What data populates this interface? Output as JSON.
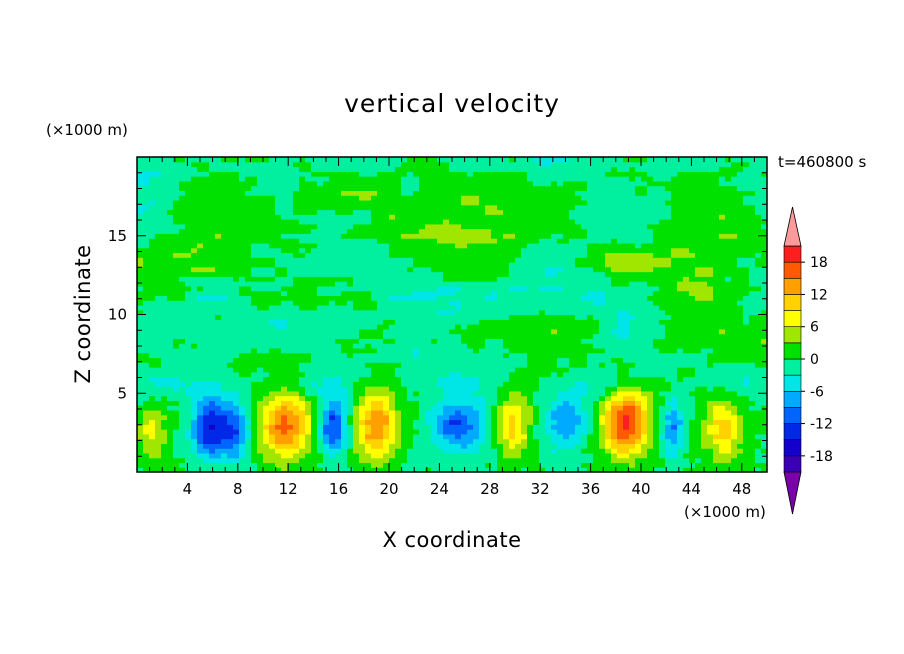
{
  "chart_data": {
    "type": "heatmap",
    "title": "vertical velocity",
    "xlabel": "X coordinate",
    "ylabel": "Z coordinate",
    "x_unit": "(×1000 m)",
    "y_unit": "(×1000 m)",
    "time_label": "t=460800 s",
    "xlim": [
      0,
      50
    ],
    "ylim": [
      0,
      20
    ],
    "x_ticks": [
      "4",
      "8",
      "12",
      "16",
      "20",
      "24",
      "28",
      "32",
      "36",
      "40",
      "44",
      "48"
    ],
    "y_ticks": [
      "5",
      "10",
      "15"
    ],
    "colorbar": {
      "levels": [
        -21,
        -18,
        -15,
        -12,
        -9,
        -6,
        -3,
        0,
        3,
        6,
        9,
        12,
        15,
        18,
        21
      ],
      "tick_labels": [
        "18",
        "12",
        "6",
        "0",
        "-6",
        "-12",
        "-18"
      ],
      "colors": [
        "#7a00a8",
        "#3c00b4",
        "#1400cc",
        "#0028e6",
        "#0064ff",
        "#00aaff",
        "#00e6e6",
        "#00f0a0",
        "#00e100",
        "#a0e600",
        "#ffff00",
        "#ffd200",
        "#ffa000",
        "#ff5a00",
        "#ff1e1e",
        "#ff9a9a"
      ],
      "extend": "both"
    },
    "cells": [
      {
        "x": 6,
        "z": 2.8,
        "w": -16,
        "sx": 1.6,
        "sz": 1.9
      },
      {
        "x": 8,
        "z": 2.6,
        "w": -8,
        "sx": 1.0,
        "sz": 1.8
      },
      {
        "x": 11.8,
        "z": 3.0,
        "w": 16,
        "sx": 2.0,
        "sz": 2.1
      },
      {
        "x": 15.5,
        "z": 3.0,
        "w": -13,
        "sx": 1.1,
        "sz": 1.8
      },
      {
        "x": 19.0,
        "z": 3.0,
        "w": 15,
        "sx": 1.6,
        "sz": 2.1
      },
      {
        "x": 25.5,
        "z": 3.0,
        "w": -12,
        "sx": 2.0,
        "sz": 1.7
      },
      {
        "x": 29.8,
        "z": 3.0,
        "w": 10,
        "sx": 1.3,
        "sz": 2.0
      },
      {
        "x": 34.0,
        "z": 3.2,
        "w": -9,
        "sx": 1.6,
        "sz": 1.8
      },
      {
        "x": 38.8,
        "z": 3.2,
        "w": 19,
        "sx": 1.8,
        "sz": 2.1
      },
      {
        "x": 42.5,
        "z": 2.8,
        "w": -9,
        "sx": 0.9,
        "sz": 1.7
      },
      {
        "x": 46.5,
        "z": 2.8,
        "w": 10,
        "sx": 1.5,
        "sz": 2.0
      },
      {
        "x": 1.2,
        "z": 2.5,
        "w": 7,
        "sx": 1.2,
        "sz": 1.6
      }
    ]
  }
}
